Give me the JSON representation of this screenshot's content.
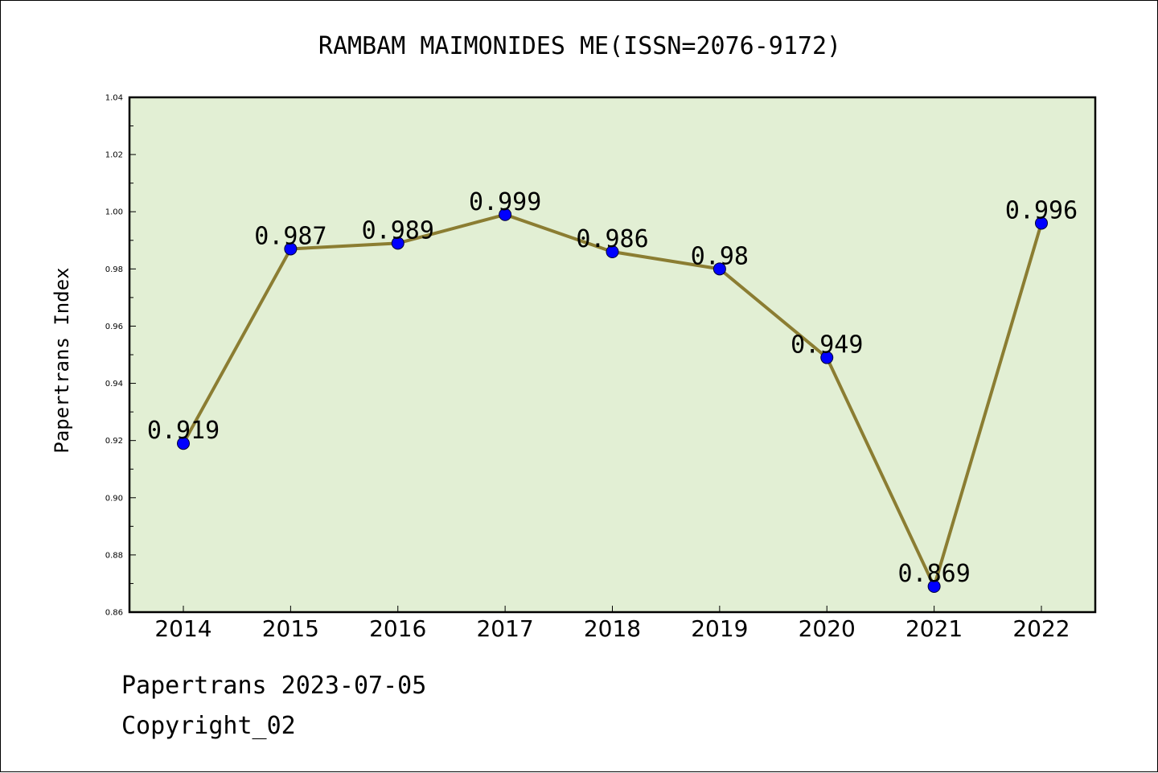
{
  "chart_data": {
    "type": "line",
    "title": "RAMBAM MAIMONIDES ME(ISSN=2076-9172)",
    "xlabel": "",
    "ylabel": "Papertrans Index",
    "categories": [
      "2014",
      "2015",
      "2016",
      "2017",
      "2018",
      "2019",
      "2020",
      "2021",
      "2022"
    ],
    "values": [
      0.919,
      0.987,
      0.989,
      0.999,
      0.986,
      0.98,
      0.949,
      0.869,
      0.996
    ],
    "data_labels": [
      "0.919",
      "0.987",
      "0.989",
      "0.999",
      "0.986",
      "0.98",
      "0.949",
      "0.869",
      "0.996"
    ],
    "ylim": [
      0.86,
      1.04
    ],
    "yticks": [
      "0.86",
      "0.88",
      "0.90",
      "0.92",
      "0.94",
      "0.96",
      "0.98",
      "1.00",
      "1.02",
      "1.04"
    ],
    "grid": false,
    "legend": "none",
    "colors": {
      "plot_background": "#e2efd4",
      "line": "#8b7d32",
      "marker": "#0000ff"
    }
  },
  "footer": {
    "line1": "Papertrans 2023-07-05",
    "line2": "Copyright_02"
  }
}
